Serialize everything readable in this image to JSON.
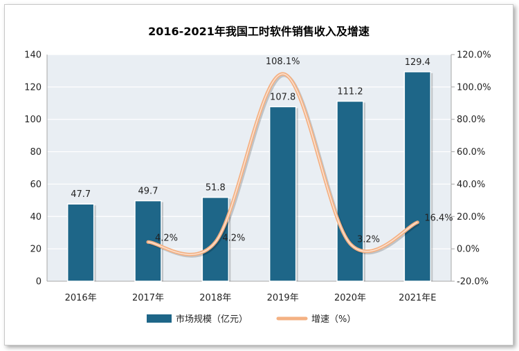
{
  "chart_data": {
    "title": "2016-2021年我国工时软件销售收入及增速",
    "categories": [
      "2016年",
      "2017年",
      "2018年",
      "2019年",
      "2020年",
      "2021年E"
    ],
    "series": [
      {
        "name": "市场规模（亿元）",
        "type": "bar",
        "axis": "left",
        "values": [
          47.7,
          49.7,
          51.8,
          107.8,
          111.2,
          129.4
        ],
        "labels": [
          "47.7",
          "49.7",
          "51.8",
          "107.8",
          "111.2",
          "129.4"
        ],
        "color": "#1e6688"
      },
      {
        "name": "增速（%）",
        "type": "line",
        "axis": "right",
        "values": [
          null,
          4.2,
          4.2,
          108.1,
          3.2,
          16.4
        ],
        "labels": [
          "",
          "4.2%",
          "4.2%",
          "108.1%",
          "3.2%",
          "16.4%"
        ],
        "color": "#f4b183"
      }
    ],
    "left_axis": {
      "min": 0,
      "max": 140,
      "step": 20,
      "ticks": [
        "0",
        "20",
        "40",
        "60",
        "80",
        "100",
        "120",
        "140"
      ]
    },
    "right_axis": {
      "min": -20,
      "max": 120,
      "step": 20,
      "ticks": [
        "-20.0%",
        "0.0%",
        "20.0%",
        "40.0%",
        "60.0%",
        "80.0%",
        "100.0%",
        "120.0%"
      ]
    },
    "plot_background": "#e9eef3",
    "grid": true,
    "legend_position": "bottom"
  }
}
